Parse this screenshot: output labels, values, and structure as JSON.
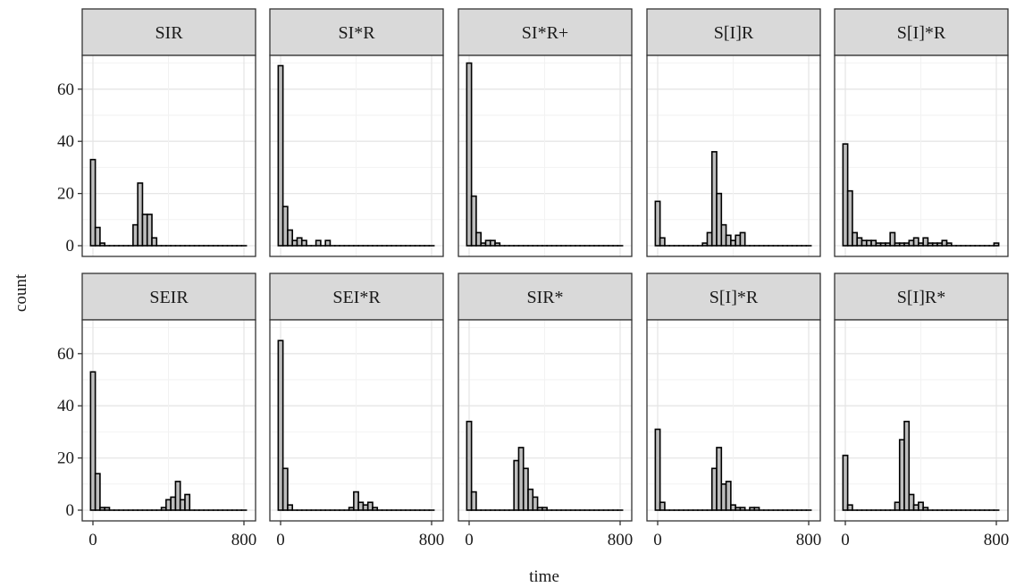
{
  "chart_data": {
    "type": "bar",
    "subtype": "faceted-histogram",
    "xlabel": "time",
    "ylabel": "count",
    "xlim": [
      -20,
      820
    ],
    "ylim": [
      0,
      72
    ],
    "x_ticks": [
      0,
      800
    ],
    "y_ticks": [
      0,
      20,
      40,
      60
    ],
    "bin_width": 25,
    "bar_fill": "#bdbdbd",
    "bar_stroke": "#000000",
    "strip_fill": "#d9d9d9",
    "grid": true,
    "panels": [
      {
        "label": "SIR",
        "counts": [
          33,
          7,
          1,
          0,
          0,
          0,
          0,
          0,
          0,
          8,
          24,
          12,
          12,
          3,
          0,
          0,
          0,
          0,
          0,
          0,
          0,
          0,
          0,
          0,
          0,
          0,
          0,
          0,
          0,
          0,
          0,
          0,
          0
        ]
      },
      {
        "label": "SI*R",
        "counts": [
          69,
          15,
          6,
          2,
          3,
          2,
          0,
          0,
          2,
          0,
          2,
          0,
          0,
          0,
          0,
          0,
          0,
          0,
          0,
          0,
          0,
          0,
          0,
          0,
          0,
          0,
          0,
          0,
          0,
          0,
          0,
          0,
          0
        ]
      },
      {
        "label": "SI*R+",
        "counts": [
          70,
          19,
          5,
          1,
          2,
          2,
          1,
          0,
          0,
          0,
          0,
          0,
          0,
          0,
          0,
          0,
          0,
          0,
          0,
          0,
          0,
          0,
          0,
          0,
          0,
          0,
          0,
          0,
          0,
          0,
          0,
          0,
          0
        ]
      },
      {
        "label": "S[I]R",
        "counts": [
          17,
          3,
          0,
          0,
          0,
          0,
          0,
          0,
          0,
          0,
          1,
          5,
          36,
          20,
          8,
          4,
          2,
          4,
          5,
          0,
          0,
          0,
          0,
          0,
          0,
          0,
          0,
          0,
          0,
          0,
          0,
          0,
          0
        ]
      },
      {
        "label": "S[I]*R",
        "counts": [
          39,
          21,
          5,
          3,
          2,
          2,
          2,
          1,
          1,
          1,
          5,
          1,
          1,
          1,
          2,
          3,
          1,
          3,
          1,
          1,
          1,
          2,
          1,
          0,
          0,
          0,
          0,
          0,
          0,
          0,
          0,
          0,
          1
        ]
      },
      {
        "label": "SEIR",
        "counts": [
          53,
          14,
          1,
          1,
          0,
          0,
          0,
          0,
          0,
          0,
          0,
          0,
          0,
          0,
          0,
          1,
          4,
          5,
          11,
          4,
          6,
          0,
          0,
          0,
          0,
          0,
          0,
          0,
          0,
          0,
          0,
          0,
          0
        ]
      },
      {
        "label": "SEI*R",
        "counts": [
          65,
          16,
          2,
          0,
          0,
          0,
          0,
          0,
          0,
          0,
          0,
          0,
          0,
          0,
          0,
          1,
          7,
          3,
          2,
          3,
          1,
          0,
          0,
          0,
          0,
          0,
          0,
          0,
          0,
          0,
          0,
          0,
          0
        ]
      },
      {
        "label": "SIR*",
        "counts": [
          34,
          7,
          0,
          0,
          0,
          0,
          0,
          0,
          0,
          0,
          19,
          24,
          16,
          8,
          5,
          1,
          1,
          0,
          0,
          0,
          0,
          0,
          0,
          0,
          0,
          0,
          0,
          0,
          0,
          0,
          0,
          0,
          0
        ]
      },
      {
        "label": "S[I]*R",
        "counts": [
          31,
          3,
          0,
          0,
          0,
          0,
          0,
          0,
          0,
          0,
          0,
          0,
          16,
          24,
          10,
          11,
          2,
          1,
          1,
          0,
          1,
          1,
          0,
          0,
          0,
          0,
          0,
          0,
          0,
          0,
          0,
          0,
          0
        ]
      },
      {
        "label": "S[I]R*",
        "counts": [
          21,
          2,
          0,
          0,
          0,
          0,
          0,
          0,
          0,
          0,
          0,
          3,
          27,
          34,
          6,
          2,
          3,
          1,
          0,
          0,
          0,
          0,
          0,
          0,
          0,
          0,
          0,
          0,
          0,
          0,
          0,
          0,
          0
        ]
      }
    ]
  }
}
